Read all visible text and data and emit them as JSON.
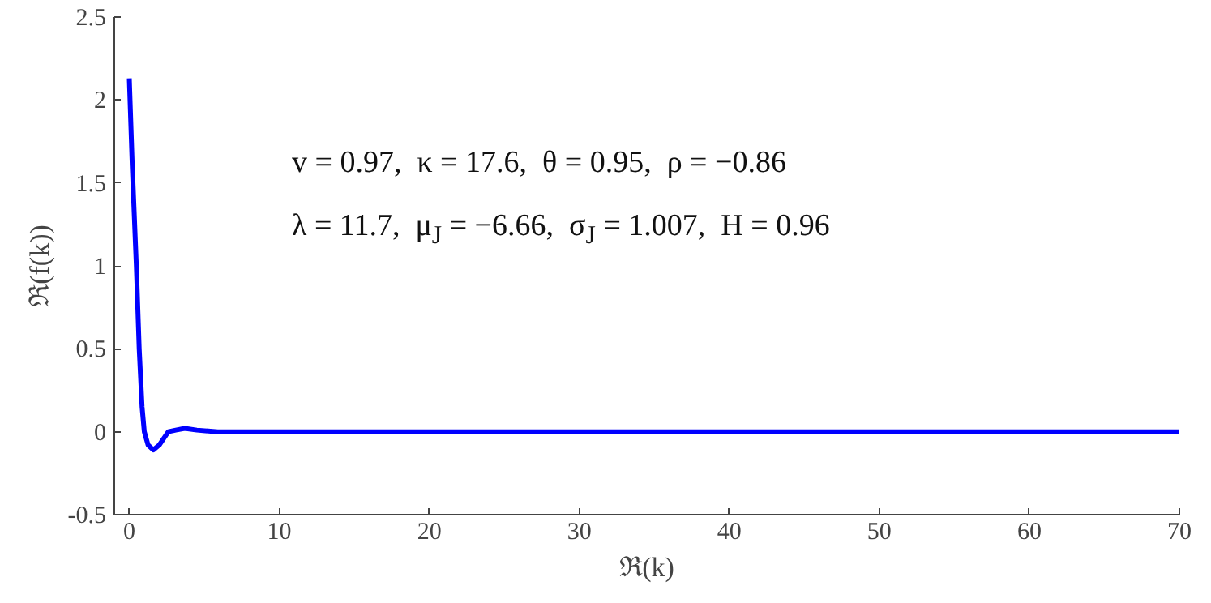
{
  "chart_data": {
    "type": "line",
    "xlabel": "ℜ(k)",
    "ylabel": "ℜ(f(k))",
    "annotations": [
      "v = 0.97,  κ = 17.6,  θ = 0.95,  ρ = −0.86",
      "λ = 11.7,  μ$_{J}$ = −6.66,  σ$_{J}$ = 1.007,  H = 0.96"
    ],
    "series": [
      {
        "color": "#0000ff",
        "x": [
          0,
          0.2,
          0.47,
          0.66,
          0.85,
          1.0,
          1.25,
          1.6,
          2.0,
          2.6,
          3.1,
          3.7,
          4.5,
          5.9,
          10,
          70
        ],
        "values": [
          2.13,
          1.6,
          1.0,
          0.5,
          0.15,
          0,
          -0.08,
          -0.11,
          -0.08,
          0,
          0.01,
          0.02,
          0.01,
          0,
          0,
          0
        ]
      }
    ],
    "xlim": [
      -1,
      70
    ],
    "ylim": [
      -0.5,
      2.5
    ],
    "xticks": [
      0,
      10,
      20,
      30,
      40,
      50,
      60,
      70
    ],
    "yticks": [
      {
        "value": -0.5,
        "label": "-0.5"
      },
      0,
      0.5,
      1,
      1.5,
      2,
      2.5
    ],
    "grid": false,
    "marker": "none",
    "line_style": "solid"
  }
}
